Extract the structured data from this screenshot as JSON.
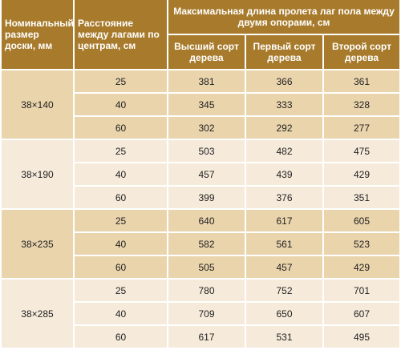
{
  "header": {
    "size": "Номинальный размер доски, мм",
    "spacing": "Расстояние между лагами по центрам, см",
    "span": "Максимальная длина пролета лаг пола между двумя опорами, см",
    "grades": [
      "Высший сорт дерева",
      "Первый сорт дерева",
      "Второй сорт дерева"
    ]
  },
  "groups": [
    {
      "size": "38×140",
      "rows": [
        [
          "25",
          "381",
          "366",
          "361"
        ],
        [
          "40",
          "345",
          "333",
          "328"
        ],
        [
          "60",
          "302",
          "292",
          "277"
        ]
      ]
    },
    {
      "size": "38×190",
      "rows": [
        [
          "25",
          "503",
          "482",
          "475"
        ],
        [
          "40",
          "457",
          "439",
          "429"
        ],
        [
          "60",
          "399",
          "376",
          "351"
        ]
      ]
    },
    {
      "size": "38×235",
      "rows": [
        [
          "25",
          "640",
          "617",
          "605"
        ],
        [
          "40",
          "582",
          "561",
          "523"
        ],
        [
          "60",
          "505",
          "457",
          "429"
        ]
      ]
    },
    {
      "size": "38×285",
      "rows": [
        [
          "25",
          "780",
          "752",
          "701"
        ],
        [
          "40",
          "709",
          "650",
          "607"
        ],
        [
          "60",
          "617",
          "531",
          "495"
        ]
      ]
    }
  ]
}
